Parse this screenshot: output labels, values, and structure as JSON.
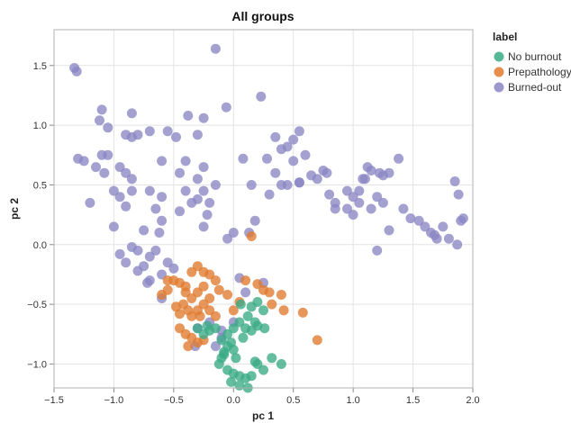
{
  "chart_data": {
    "type": "scatter",
    "title": "All groups",
    "xlabel": "pc 1",
    "ylabel": "pc 2",
    "xlim": [
      -1.5,
      2.0
    ],
    "ylim": [
      -1.2,
      1.8
    ],
    "xticks": [
      "−1.5",
      "−1.0",
      "−0.5",
      "0.0",
      "0.5",
      "1.0",
      "1.5",
      "2.0"
    ],
    "xtick_values": [
      -1.5,
      -1.0,
      -0.5,
      0.0,
      0.5,
      1.0,
      1.5,
      2.0
    ],
    "yticks": [
      "−1.0",
      "−0.5",
      "0.0",
      "0.5",
      "1.0",
      "1.5"
    ],
    "ytick_values": [
      -1.0,
      -0.5,
      0.0,
      0.5,
      1.0,
      1.5
    ],
    "grid": true,
    "legend": {
      "title": "label",
      "placement": "right"
    },
    "series": [
      {
        "name": "No burnout",
        "color": "#3aaa85",
        "points": [
          [
            0.06,
            -0.5
          ],
          [
            0.15,
            -0.52
          ],
          [
            0.2,
            -0.48
          ],
          [
            0.25,
            -0.55
          ],
          [
            0.12,
            -0.6
          ],
          [
            0.18,
            -0.65
          ],
          [
            0.05,
            -0.65
          ],
          [
            0.1,
            -0.7
          ],
          [
            0.15,
            -0.72
          ],
          [
            0.2,
            -0.68
          ],
          [
            0.0,
            -0.7
          ],
          [
            -0.05,
            -0.75
          ],
          [
            -0.1,
            -0.8
          ],
          [
            -0.15,
            -0.7
          ],
          [
            -0.2,
            -0.72
          ],
          [
            -0.22,
            -0.68
          ],
          [
            -0.25,
            -0.75
          ],
          [
            -0.3,
            -0.7
          ],
          [
            -0.05,
            -0.85
          ],
          [
            -0.02,
            -0.82
          ],
          [
            -0.08,
            -0.9
          ],
          [
            0.0,
            -0.88
          ],
          [
            0.02,
            -0.95
          ],
          [
            -0.1,
            -0.95
          ],
          [
            -0.12,
            -1.0
          ],
          [
            -0.05,
            -1.05
          ],
          [
            0.0,
            -1.08
          ],
          [
            0.05,
            -1.1
          ],
          [
            0.1,
            -1.12
          ],
          [
            0.15,
            -1.1
          ],
          [
            -0.02,
            -1.15
          ],
          [
            0.05,
            -1.18
          ],
          [
            0.12,
            -1.2
          ],
          [
            0.2,
            -1.0
          ],
          [
            0.25,
            -1.05
          ],
          [
            0.32,
            -0.95
          ],
          [
            0.4,
            -1.0
          ],
          [
            0.18,
            -0.98
          ],
          [
            -0.08,
            -0.92
          ],
          [
            0.08,
            -0.78
          ],
          [
            0.26,
            -0.7
          ]
        ]
      },
      {
        "name": "Prepathology",
        "color": "#e07a2e",
        "points": [
          [
            0.15,
            0.07
          ],
          [
            -0.3,
            -0.18
          ],
          [
            -0.35,
            -0.23
          ],
          [
            -0.25,
            -0.23
          ],
          [
            -0.2,
            -0.25
          ],
          [
            -0.55,
            -0.3
          ],
          [
            -0.5,
            -0.3
          ],
          [
            -0.45,
            -0.32
          ],
          [
            -0.4,
            -0.35
          ],
          [
            -0.55,
            -0.38
          ],
          [
            -0.6,
            -0.42
          ],
          [
            -0.4,
            -0.4
          ],
          [
            -0.35,
            -0.45
          ],
          [
            -0.3,
            -0.4
          ],
          [
            -0.25,
            -0.35
          ],
          [
            -0.2,
            -0.45
          ],
          [
            -0.42,
            -0.5
          ],
          [
            -0.38,
            -0.55
          ],
          [
            -0.3,
            -0.55
          ],
          [
            -0.25,
            -0.5
          ],
          [
            -0.45,
            -0.58
          ],
          [
            -0.35,
            -0.6
          ],
          [
            -0.28,
            -0.6
          ],
          [
            -0.2,
            -0.55
          ],
          [
            -0.15,
            -0.6
          ],
          [
            -0.45,
            -0.7
          ],
          [
            -0.4,
            -0.75
          ],
          [
            -0.35,
            -0.78
          ],
          [
            -0.3,
            -0.82
          ],
          [
            -0.25,
            -0.8
          ],
          [
            -0.38,
            -0.85
          ],
          [
            0.1,
            -0.3
          ],
          [
            0.2,
            -0.33
          ],
          [
            0.25,
            -0.38
          ],
          [
            0.3,
            -0.4
          ],
          [
            0.4,
            -0.42
          ],
          [
            0.42,
            -0.55
          ],
          [
            0.32,
            -0.5
          ],
          [
            0.05,
            -0.48
          ],
          [
            0.0,
            -0.55
          ],
          [
            -0.05,
            -0.42
          ],
          [
            -0.12,
            -0.38
          ],
          [
            0.58,
            -0.57
          ],
          [
            0.7,
            -0.8
          ],
          [
            -0.48,
            -0.52
          ],
          [
            -0.15,
            -0.3
          ]
        ]
      },
      {
        "name": "Burned-out",
        "color": "#8b86c4",
        "points": [
          [
            -1.33,
            1.48
          ],
          [
            -1.31,
            1.45
          ],
          [
            -0.15,
            1.64
          ],
          [
            0.23,
            1.24
          ],
          [
            -0.06,
            1.15
          ],
          [
            -1.1,
            1.13
          ],
          [
            -0.85,
            1.1
          ],
          [
            -0.38,
            1.08
          ],
          [
            -1.12,
            1.04
          ],
          [
            -0.25,
            1.06
          ],
          [
            -1.05,
            0.98
          ],
          [
            -0.7,
            0.95
          ],
          [
            -0.55,
            0.95
          ],
          [
            -0.48,
            0.9
          ],
          [
            -0.9,
            0.92
          ],
          [
            -0.85,
            0.9
          ],
          [
            -0.8,
            0.92
          ],
          [
            -0.3,
            0.92
          ],
          [
            0.35,
            0.9
          ],
          [
            0.55,
            0.95
          ],
          [
            0.5,
            0.88
          ],
          [
            -1.1,
            0.75
          ],
          [
            -1.05,
            0.75
          ],
          [
            -1.3,
            0.72
          ],
          [
            -1.25,
            0.7
          ],
          [
            -1.15,
            0.65
          ],
          [
            -1.08,
            0.6
          ],
          [
            -0.95,
            0.65
          ],
          [
            -0.9,
            0.6
          ],
          [
            -0.85,
            0.55
          ],
          [
            -0.6,
            0.7
          ],
          [
            -0.4,
            0.7
          ],
          [
            -0.25,
            0.65
          ],
          [
            0.08,
            0.72
          ],
          [
            0.28,
            0.72
          ],
          [
            0.4,
            0.8
          ],
          [
            0.45,
            0.82
          ],
          [
            0.5,
            0.7
          ],
          [
            0.6,
            0.75
          ],
          [
            0.75,
            0.62
          ],
          [
            0.78,
            0.6
          ],
          [
            0.65,
            0.58
          ],
          [
            0.55,
            0.52
          ],
          [
            0.45,
            0.5
          ],
          [
            0.4,
            0.5
          ],
          [
            0.15,
            0.5
          ],
          [
            0.3,
            0.42
          ],
          [
            -0.45,
            0.6
          ],
          [
            -0.3,
            0.55
          ],
          [
            -0.15,
            0.5
          ],
          [
            -0.25,
            0.45
          ],
          [
            -0.4,
            0.45
          ],
          [
            -1.0,
            0.45
          ],
          [
            -0.95,
            0.4
          ],
          [
            -0.85,
            0.45
          ],
          [
            -0.7,
            0.45
          ],
          [
            -0.6,
            0.4
          ],
          [
            -1.2,
            0.35
          ],
          [
            -0.9,
            0.32
          ],
          [
            -0.65,
            0.3
          ],
          [
            -0.3,
            0.38
          ],
          [
            -0.2,
            0.35
          ],
          [
            -0.35,
            0.35
          ],
          [
            -0.22,
            0.25
          ],
          [
            -0.45,
            0.28
          ],
          [
            -0.6,
            0.2
          ],
          [
            -0.75,
            0.12
          ],
          [
            -1.0,
            0.15
          ],
          [
            -0.25,
            0.15
          ],
          [
            -0.62,
            0.1
          ],
          [
            -0.85,
            -0.02
          ],
          [
            -0.8,
            -0.05
          ],
          [
            -0.7,
            -0.1
          ],
          [
            -0.65,
            -0.05
          ],
          [
            -0.55,
            -0.15
          ],
          [
            -0.5,
            -0.2
          ],
          [
            -0.6,
            -0.25
          ],
          [
            -0.75,
            -0.18
          ],
          [
            -0.95,
            -0.08
          ],
          [
            -0.9,
            -0.15
          ],
          [
            -0.8,
            -0.22
          ],
          [
            -0.7,
            -0.3
          ],
          [
            -0.72,
            -0.32
          ],
          [
            -0.6,
            -0.45
          ],
          [
            0.05,
            -0.28
          ],
          [
            -0.2,
            -0.65
          ],
          [
            -0.3,
            -0.7
          ],
          [
            -0.15,
            -0.85
          ],
          [
            -0.1,
            -0.78
          ],
          [
            0.0,
            -0.65
          ],
          [
            0.8,
            0.42
          ],
          [
            0.95,
            0.45
          ],
          [
            1.0,
            0.4
          ],
          [
            1.05,
            0.45
          ],
          [
            1.08,
            0.55
          ],
          [
            1.1,
            0.55
          ],
          [
            1.12,
            0.65
          ],
          [
            1.15,
            0.62
          ],
          [
            1.22,
            0.6
          ],
          [
            1.25,
            0.58
          ],
          [
            1.3,
            0.6
          ],
          [
            1.38,
            0.72
          ],
          [
            1.0,
            0.25
          ],
          [
            1.05,
            0.35
          ],
          [
            1.15,
            0.3
          ],
          [
            1.2,
            0.4
          ],
          [
            1.25,
            0.35
          ],
          [
            1.42,
            0.3
          ],
          [
            1.48,
            0.22
          ],
          [
            1.55,
            0.2
          ],
          [
            1.6,
            0.15
          ],
          [
            1.65,
            0.1
          ],
          [
            1.68,
            0.08
          ],
          [
            1.7,
            0.05
          ],
          [
            1.75,
            0.15
          ],
          [
            1.85,
            0.53
          ],
          [
            1.88,
            0.42
          ],
          [
            1.9,
            0.2
          ],
          [
            1.92,
            0.22
          ],
          [
            1.87,
            0.0
          ],
          [
            1.8,
            0.05
          ],
          [
            1.3,
            0.12
          ],
          [
            1.2,
            -0.05
          ],
          [
            0.55,
            0.52
          ],
          [
            0.7,
            0.55
          ],
          [
            0.35,
            0.6
          ],
          [
            0.18,
            0.2
          ],
          [
            0.13,
            0.1
          ],
          [
            0.0,
            0.1
          ],
          [
            -0.05,
            0.05
          ],
          [
            0.25,
            -0.32
          ],
          [
            0.1,
            -0.4
          ],
          [
            -0.1,
            -0.72
          ],
          [
            -0.32,
            -0.85
          ],
          [
            0.85,
            0.3
          ],
          [
            0.95,
            0.3
          ],
          [
            0.85,
            0.35
          ]
        ]
      }
    ]
  }
}
